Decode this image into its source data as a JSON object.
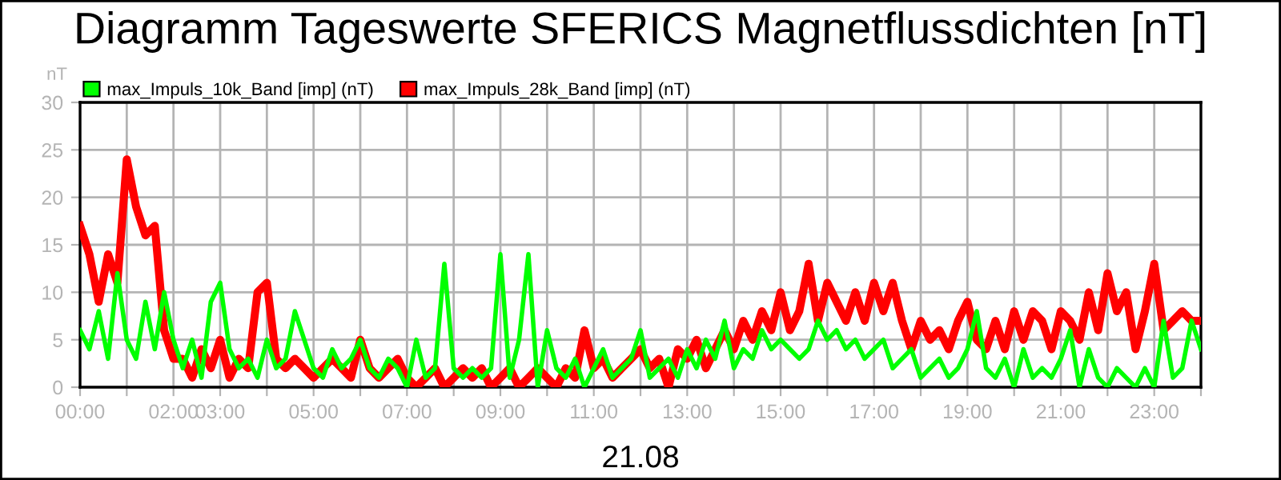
{
  "chart_data": {
    "type": "line",
    "title": "Diagramm Tageswerte SFERICS Magnetflussdichten [nT]",
    "xlabel": "21.08",
    "ylabel": "nT",
    "x": [
      0,
      0.2,
      0.4,
      0.6,
      0.8,
      1,
      1.2,
      1.4,
      1.6,
      1.8,
      2,
      2.2,
      2.4,
      2.6,
      2.8,
      3,
      3.2,
      3.4,
      3.6,
      3.8,
      4,
      4.2,
      4.4,
      4.6,
      4.8,
      5,
      5.2,
      5.4,
      5.6,
      5.8,
      6,
      6.2,
      6.4,
      6.6,
      6.8,
      7,
      7.2,
      7.4,
      7.6,
      7.8,
      8,
      8.2,
      8.4,
      8.6,
      8.8,
      9,
      9.2,
      9.4,
      9.6,
      9.8,
      10,
      10.2,
      10.4,
      10.6,
      10.8,
      11,
      11.2,
      11.4,
      11.6,
      11.8,
      12,
      12.2,
      12.4,
      12.6,
      12.8,
      13,
      13.2,
      13.4,
      13.6,
      13.8,
      14,
      14.2,
      14.4,
      14.6,
      14.8,
      15,
      15.2,
      15.4,
      15.6,
      15.8,
      16,
      16.2,
      16.4,
      16.6,
      16.8,
      17,
      17.2,
      17.4,
      17.6,
      17.8,
      18,
      18.2,
      18.4,
      18.6,
      18.8,
      19,
      19.2,
      19.4,
      19.6,
      19.8,
      20,
      20.2,
      20.4,
      20.6,
      20.8,
      21,
      21.2,
      21.4,
      21.6,
      21.8,
      22,
      22.2,
      22.4,
      22.6,
      22.8,
      23,
      23.2,
      23.4,
      23.6,
      23.8,
      24
    ],
    "series": [
      {
        "name": "max_Impuls_10k_Band [imp] (nT)",
        "color": "#00ff00",
        "values": [
          6,
          4,
          8,
          3,
          12,
          5,
          3,
          9,
          4,
          10,
          5,
          2,
          5,
          1,
          9,
          11,
          4,
          2,
          3,
          1,
          5,
          2,
          3,
          8,
          5,
          2,
          1,
          4,
          2,
          3,
          5,
          2,
          1,
          3,
          2,
          0,
          5,
          1,
          2,
          13,
          2,
          1,
          2,
          1,
          2,
          14,
          1,
          5,
          14,
          0,
          6,
          2,
          1,
          3,
          0,
          2,
          4,
          1,
          2,
          3,
          6,
          1,
          2,
          3,
          1,
          4,
          2,
          5,
          3,
          7,
          2,
          4,
          3,
          6,
          4,
          5,
          4,
          3,
          4,
          7,
          5,
          6,
          4,
          5,
          3,
          4,
          5,
          2,
          3,
          4,
          1,
          2,
          3,
          1,
          2,
          4,
          8,
          2,
          1,
          3,
          0,
          4,
          1,
          2,
          1,
          3,
          6,
          0,
          4,
          1,
          0,
          2,
          1,
          0,
          2,
          0,
          7,
          1,
          2,
          7,
          4
        ]
      },
      {
        "name": "max_Impuls_28k_Band [imp] (nT)",
        "color": "#ff0000",
        "values": [
          17,
          14,
          9,
          14,
          11,
          24,
          19,
          16,
          17,
          6,
          3,
          3,
          1,
          4,
          2,
          5,
          1,
          3,
          2,
          10,
          11,
          3,
          2,
          3,
          2,
          1,
          2,
          3,
          2,
          1,
          5,
          2,
          1,
          2,
          3,
          1,
          0,
          1,
          2,
          0,
          1,
          2,
          1,
          2,
          0,
          1,
          2,
          0,
          1,
          2,
          1,
          0,
          2,
          1,
          6,
          2,
          3,
          1,
          2,
          3,
          4,
          2,
          3,
          0,
          4,
          3,
          5,
          2,
          4,
          6,
          4,
          7,
          5,
          8,
          6,
          10,
          6,
          8,
          13,
          7,
          11,
          9,
          7,
          10,
          7,
          11,
          8,
          11,
          7,
          4,
          7,
          5,
          6,
          4,
          7,
          9,
          5,
          4,
          7,
          4,
          8,
          5,
          8,
          7,
          4,
          8,
          7,
          5,
          10,
          6,
          12,
          8,
          10,
          4,
          8,
          13,
          6,
          7,
          8,
          7,
          7
        ]
      }
    ],
    "xlim": [
      0,
      24
    ],
    "xticks": [
      {
        "value": 0,
        "label": "00:00"
      },
      {
        "value": 1,
        "label": null
      },
      {
        "value": 2,
        "label": "02:00"
      },
      {
        "value": 3,
        "label": "03:00"
      },
      {
        "value": 4,
        "label": null
      },
      {
        "value": 5,
        "label": "05:00"
      },
      {
        "value": 6,
        "label": null
      },
      {
        "value": 7,
        "label": "07:00"
      },
      {
        "value": 8,
        "label": null
      },
      {
        "value": 9,
        "label": "09:00"
      },
      {
        "value": 10,
        "label": null
      },
      {
        "value": 11,
        "label": "11:00"
      },
      {
        "value": 12,
        "label": null
      },
      {
        "value": 13,
        "label": "13:00"
      },
      {
        "value": 14,
        "label": null
      },
      {
        "value": 15,
        "label": "15:00"
      },
      {
        "value": 16,
        "label": null
      },
      {
        "value": 17,
        "label": "17:00"
      },
      {
        "value": 18,
        "label": null
      },
      {
        "value": 19,
        "label": "19:00"
      },
      {
        "value": 20,
        "label": null
      },
      {
        "value": 21,
        "label": "21:00"
      },
      {
        "value": 22,
        "label": null
      },
      {
        "value": 23,
        "label": "23:00"
      },
      {
        "value": 24,
        "label": null
      }
    ],
    "ylim": [
      0,
      30
    ],
    "yticks": [
      0,
      5,
      10,
      15,
      20,
      25,
      30
    ],
    "grid": true,
    "legend": "top left",
    "marker": "none",
    "line_style": "solid"
  }
}
